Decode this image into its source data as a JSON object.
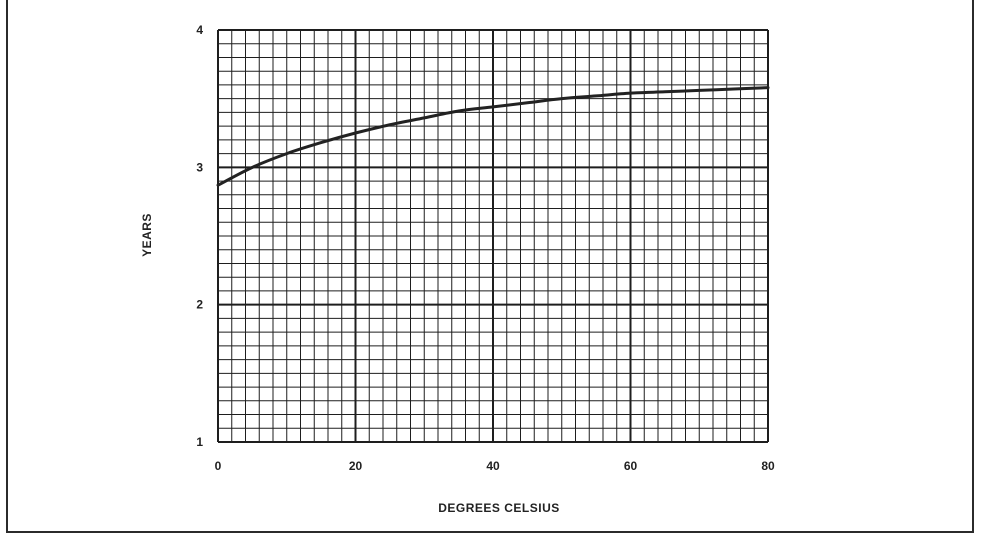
{
  "chart_data": {
    "type": "line",
    "title": "",
    "xlabel": "DEGREES CELSIUS",
    "ylabel": "YEARS",
    "xlim": [
      0,
      80
    ],
    "ylim": [
      1,
      4
    ],
    "x_ticks": [
      "0",
      "20",
      "40",
      "60",
      "80"
    ],
    "y_ticks": [
      "1",
      "2",
      "3",
      "4"
    ],
    "grid": true,
    "series": [
      {
        "x": [
          0,
          5,
          10,
          15,
          20,
          25,
          30,
          35,
          40,
          45,
          50,
          55,
          60,
          65,
          70,
          75,
          80
        ],
        "y": [
          2.87,
          3.0,
          3.1,
          3.18,
          3.25,
          3.31,
          3.36,
          3.41,
          3.44,
          3.47,
          3.5,
          3.52,
          3.54,
          3.55,
          3.56,
          3.57,
          3.58
        ]
      }
    ],
    "colors": {
      "line": "#222222",
      "grid": "#1e1e1e",
      "background": "#ffffff"
    }
  }
}
